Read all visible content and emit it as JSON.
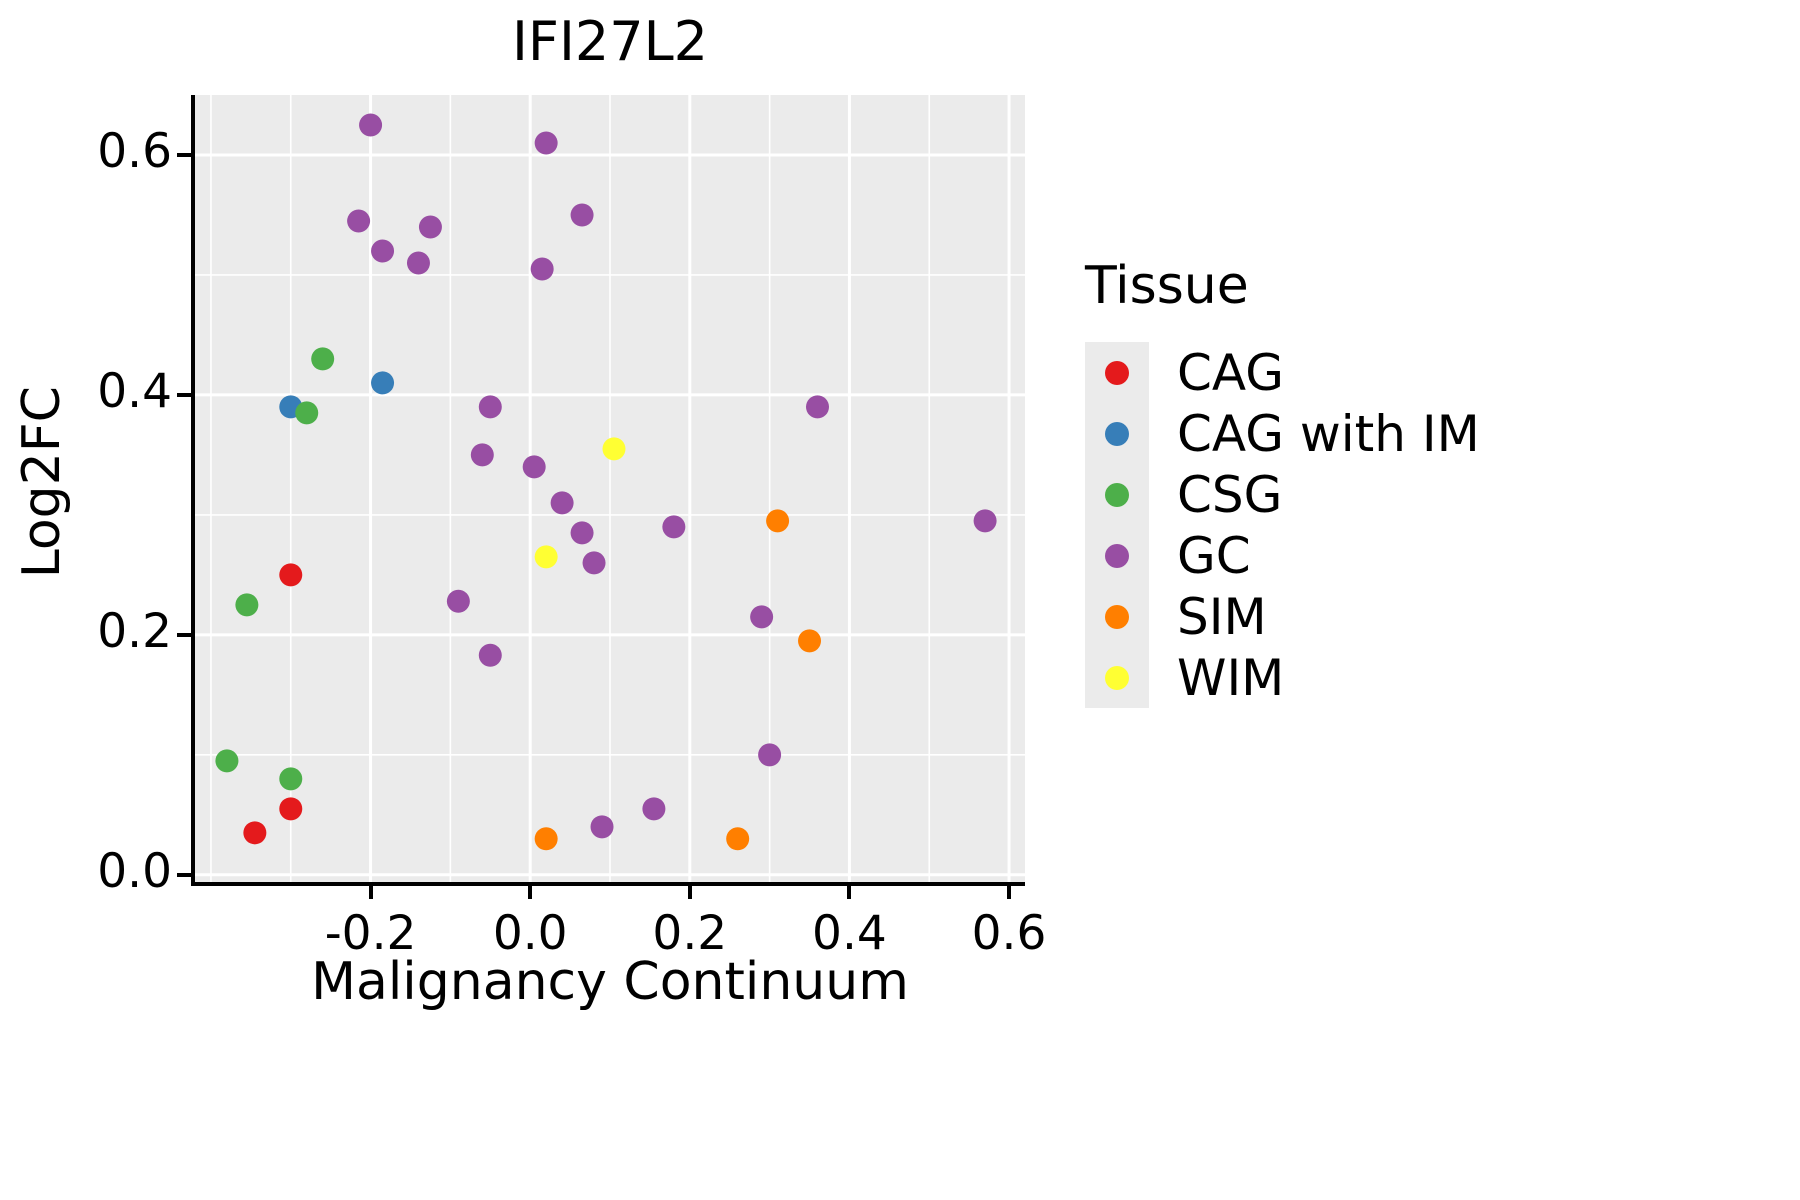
{
  "title": "IFI27L2",
  "axes": {
    "xlabel": "Malignancy Continuum",
    "ylabel": "Log2FC"
  },
  "legend": {
    "title": "Tissue",
    "items": [
      {
        "label": "CAG",
        "color": "#e41a1c"
      },
      {
        "label": "CAG with IM",
        "color": "#377eb8"
      },
      {
        "label": "CSG",
        "color": "#4daf4a"
      },
      {
        "label": "GC",
        "color": "#984ea3"
      },
      {
        "label": "SIM",
        "color": "#ff7f00"
      },
      {
        "label": "WIM",
        "color": "#ffff33"
      }
    ]
  },
  "style": {
    "panel_background": "#EBEBEB",
    "grid_color": "#ffffff",
    "axis_color": "#000000"
  },
  "chart_data": {
    "type": "scatter",
    "title": "IFI27L2",
    "xlabel": "Malignancy Continuum",
    "ylabel": "Log2FC",
    "legend_title": "Tissue",
    "legend_position": "right",
    "grid": true,
    "xlim": [
      -0.42,
      0.62
    ],
    "ylim": [
      -0.006,
      0.65
    ],
    "x_ticks": [
      -0.2,
      0.0,
      0.2,
      0.4,
      0.6
    ],
    "x_tick_labels": [
      "-0.2",
      "0.0",
      "0.2",
      "0.4",
      "0.6"
    ],
    "y_ticks": [
      0.0,
      0.2,
      0.4,
      0.6
    ],
    "y_tick_labels": [
      "0.0",
      "0.2",
      "0.4",
      "0.6"
    ],
    "x_minor_ticks": [
      -0.4,
      -0.3,
      -0.1,
      0.1,
      0.3,
      0.5
    ],
    "y_minor_ticks": [
      0.1,
      0.3,
      0.5
    ],
    "series": [
      {
        "name": "CAG",
        "color": "#e41a1c",
        "points": [
          [
            -0.3,
            0.25
          ],
          [
            -0.3,
            0.055
          ],
          [
            -0.345,
            0.035
          ]
        ]
      },
      {
        "name": "CAG with IM",
        "color": "#377eb8",
        "points": [
          [
            -0.3,
            0.39
          ],
          [
            -0.185,
            0.41
          ]
        ]
      },
      {
        "name": "CSG",
        "color": "#4daf4a",
        "points": [
          [
            -0.26,
            0.43
          ],
          [
            -0.28,
            0.385
          ],
          [
            -0.355,
            0.225
          ],
          [
            -0.38,
            0.095
          ],
          [
            -0.3,
            0.08
          ]
        ]
      },
      {
        "name": "GC",
        "color": "#984ea3",
        "points": [
          [
            -0.2,
            0.625
          ],
          [
            -0.215,
            0.545
          ],
          [
            -0.185,
            0.52
          ],
          [
            -0.125,
            0.54
          ],
          [
            -0.14,
            0.51
          ],
          [
            0.02,
            0.61
          ],
          [
            0.015,
            0.505
          ],
          [
            0.065,
            0.55
          ],
          [
            -0.05,
            0.39
          ],
          [
            0.36,
            0.39
          ],
          [
            -0.06,
            0.35
          ],
          [
            0.005,
            0.34
          ],
          [
            0.04,
            0.31
          ],
          [
            0.065,
            0.285
          ],
          [
            0.08,
            0.26
          ],
          [
            0.18,
            0.29
          ],
          [
            0.57,
            0.295
          ],
          [
            -0.09,
            0.228
          ],
          [
            0.29,
            0.215
          ],
          [
            -0.05,
            0.183
          ],
          [
            0.3,
            0.1
          ],
          [
            0.155,
            0.055
          ],
          [
            0.09,
            0.04
          ]
        ]
      },
      {
        "name": "SIM",
        "color": "#ff7f00",
        "points": [
          [
            0.31,
            0.295
          ],
          [
            0.35,
            0.195
          ],
          [
            0.02,
            0.03
          ],
          [
            0.26,
            0.03
          ]
        ]
      },
      {
        "name": "WIM",
        "color": "#ffff33",
        "points": [
          [
            0.105,
            0.355
          ],
          [
            0.02,
            0.265
          ]
        ]
      }
    ]
  }
}
